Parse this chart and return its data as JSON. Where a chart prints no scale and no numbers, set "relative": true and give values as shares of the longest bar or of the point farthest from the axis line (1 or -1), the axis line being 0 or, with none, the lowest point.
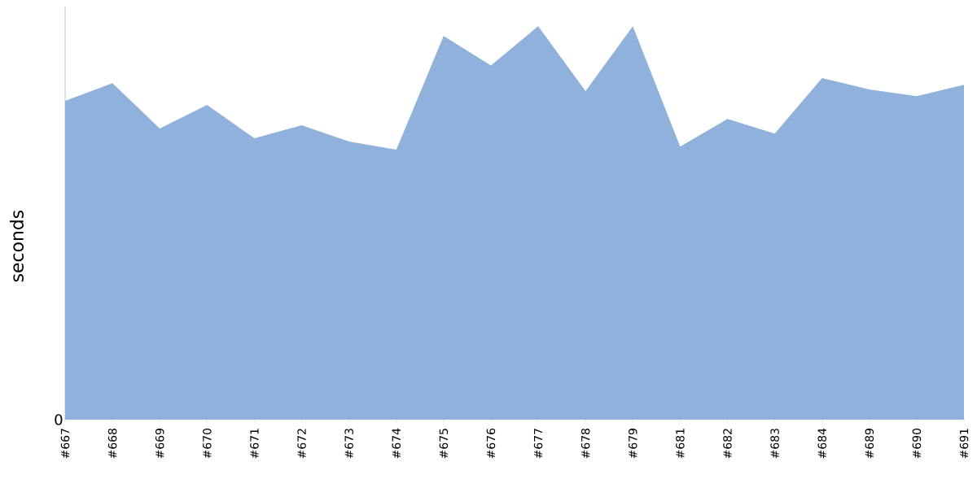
{
  "chart_data": {
    "type": "area",
    "ylabel": "seconds",
    "relative": true,
    "annotations": [
      "0"
    ],
    "categories": [
      "#667",
      "#668",
      "#669",
      "#670",
      "#671",
      "#672",
      "#673",
      "#674",
      "#675",
      "#676",
      "#677",
      "#678",
      "#679",
      "#681",
      "#682",
      "#683",
      "#684",
      "#689",
      "#690",
      "#691"
    ],
    "series": [
      {
        "color": "#8fb1db",
        "values": [
          0.81,
          0.855,
          0.74,
          0.8,
          0.715,
          0.748,
          0.707,
          0.686,
          0.975,
          0.9,
          1.0,
          0.835,
          1.0,
          0.694,
          0.764,
          0.727,
          0.868,
          0.839,
          0.822,
          0.851
        ]
      }
    ]
  }
}
